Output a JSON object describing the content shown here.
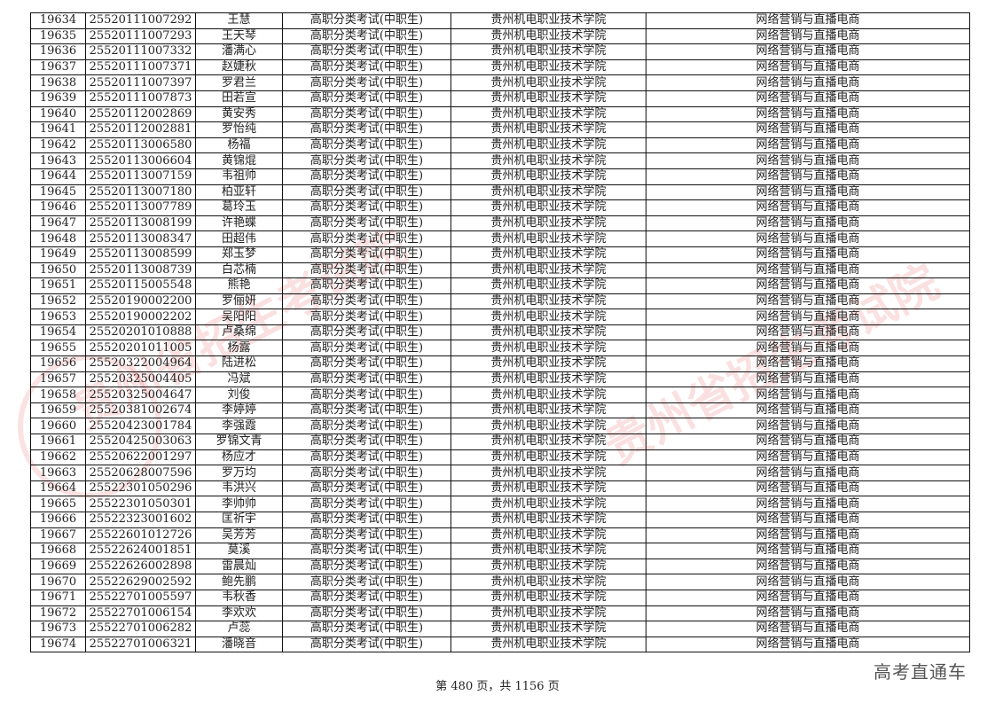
{
  "table": {
    "exam_type": "高职分类考试(中职生)",
    "school": "贵州机电职业技术学院",
    "major": "网络营销与直播电商",
    "rows": [
      [
        "19634",
        "25520111007292",
        "王慧"
      ],
      [
        "19635",
        "25520111007293",
        "王天琴"
      ],
      [
        "19636",
        "25520111007332",
        "潘满心"
      ],
      [
        "19637",
        "25520111007371",
        "赵婕秋"
      ],
      [
        "19638",
        "25520111007397",
        "罗君兰"
      ],
      [
        "19639",
        "25520111007873",
        "田若宣"
      ],
      [
        "19640",
        "25520112002869",
        "黄安秀"
      ],
      [
        "19641",
        "25520112002881",
        "罗怡纯"
      ],
      [
        "19642",
        "25520113006580",
        "杨福"
      ],
      [
        "19643",
        "25520113006604",
        "黄锦焜"
      ],
      [
        "19644",
        "25520113007159",
        "韦祖帅"
      ],
      [
        "19645",
        "25520113007180",
        "柏亚轩"
      ],
      [
        "19646",
        "25520113007789",
        "葛玲玉"
      ],
      [
        "19647",
        "25520113008199",
        "许艳蝶"
      ],
      [
        "19648",
        "25520113008347",
        "田超伟"
      ],
      [
        "19649",
        "25520113008599",
        "郑玉梦"
      ],
      [
        "19650",
        "25520113008739",
        "白芯楠"
      ],
      [
        "19651",
        "25520115005548",
        "熊艳"
      ],
      [
        "19652",
        "25520190002200",
        "罗俪妍"
      ],
      [
        "19653",
        "25520190002202",
        "吴阳阳"
      ],
      [
        "19654",
        "25520201010888",
        "卢桑绵"
      ],
      [
        "19655",
        "25520201011005",
        "杨露"
      ],
      [
        "19656",
        "25520322004964",
        "陆进松"
      ],
      [
        "19657",
        "25520325004405",
        "冯斌"
      ],
      [
        "19658",
        "25520325004647",
        "刘俊"
      ],
      [
        "19659",
        "25520381002674",
        "李婷婷"
      ],
      [
        "19660",
        "25520423001784",
        "李强霞"
      ],
      [
        "19661",
        "25520425003063",
        "罗锦文青"
      ],
      [
        "19662",
        "25520622001297",
        "杨应才"
      ],
      [
        "19663",
        "25520628007596",
        "罗万均"
      ],
      [
        "19664",
        "25522301050296",
        "韦洪兴"
      ],
      [
        "19665",
        "25522301050301",
        "李帅帅"
      ],
      [
        "19666",
        "25522323001602",
        "匡祈宇"
      ],
      [
        "19667",
        "25522601012726",
        "吴芳芳"
      ],
      [
        "19668",
        "25522624001851",
        "莫溪"
      ],
      [
        "19669",
        "25522626002898",
        "雷晨灿"
      ],
      [
        "19670",
        "25522629002592",
        "鲍先鹏"
      ],
      [
        "19671",
        "25522701005597",
        "韦秋香"
      ],
      [
        "19672",
        "25522701006154",
        "李欢欢"
      ],
      [
        "19673",
        "25522701006282",
        "卢蕊"
      ],
      [
        "19674",
        "25522701006321",
        "潘晓音"
      ]
    ]
  },
  "footer": "第 480 页，共 1156 页",
  "brand": "高考直通车",
  "watermark": "贵州省招生考试院",
  "colors": {
    "watermark": "#e13c3c"
  }
}
